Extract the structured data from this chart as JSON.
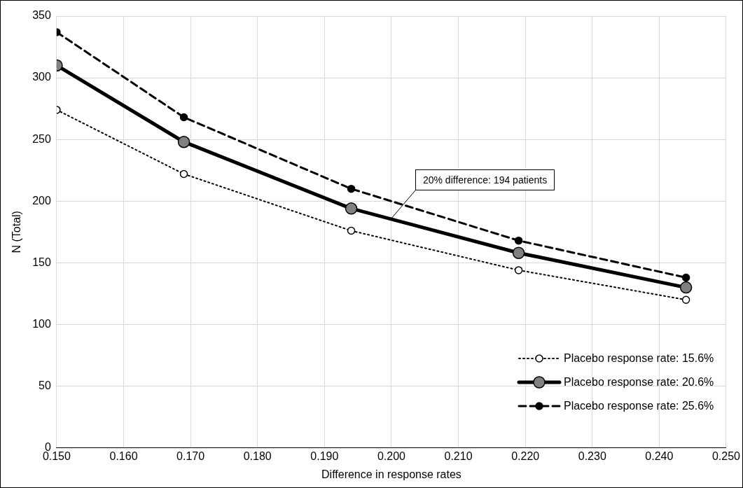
{
  "chart_data": {
    "type": "line",
    "xlabel": "Difference in response rates",
    "ylabel": "N (Total)",
    "xlim": [
      0.15,
      0.25
    ],
    "xticks": [
      {
        "value": 0.15,
        "label": "0.150"
      },
      {
        "value": 0.16,
        "label": "0.160"
      },
      {
        "value": 0.17,
        "label": "0.170"
      },
      {
        "value": 0.18,
        "label": "0.180"
      },
      {
        "value": 0.19,
        "label": "0.190"
      },
      {
        "value": 0.2,
        "label": "0.200"
      },
      {
        "value": 0.21,
        "label": "0.210"
      },
      {
        "value": 0.22,
        "label": "0.220"
      },
      {
        "value": 0.23,
        "label": "0.230"
      },
      {
        "value": 0.24,
        "label": "0.240"
      },
      {
        "value": 0.25,
        "label": "0.250"
      }
    ],
    "ylim": [
      0,
      350
    ],
    "yticks": [
      0,
      50,
      100,
      150,
      200,
      250,
      300,
      350
    ],
    "x": [
      0.15,
      0.169,
      0.194,
      0.219,
      0.244
    ],
    "series": [
      {
        "name": "Placebo response rate: 15.6%",
        "color": "#000000",
        "line_style": "dotted",
        "values": [
          274,
          222,
          176,
          144,
          120
        ]
      },
      {
        "name": "Placebo response rate: 20.6%",
        "color": "#000000",
        "line_style": "solid",
        "values": [
          310,
          248,
          194,
          158,
          130
        ]
      },
      {
        "name": "Placebo response rate: 25.6%",
        "color": "#000000",
        "line_style": "dashed",
        "values": [
          337,
          268,
          210,
          168,
          138
        ]
      }
    ],
    "marker": "circle",
    "grid": true,
    "legend": "bottom right",
    "annotations": [
      {
        "text": "20% difference: 194 patients",
        "x": 0.2,
        "y": 186
      }
    ]
  }
}
